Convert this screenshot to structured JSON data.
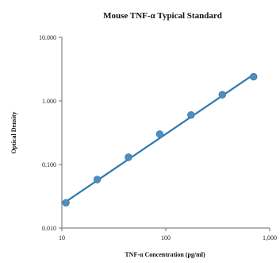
{
  "chart_data": {
    "type": "scatter",
    "title": "Mouse TNF-α Typical Standard",
    "xlabel": "TNF-α Concentration (pg/ml)",
    "ylabel": "Optical Density",
    "x_scale": "log",
    "y_scale": "log",
    "xlim": [
      10,
      1000
    ],
    "ylim": [
      0.01,
      10
    ],
    "x_ticks": [
      10,
      100,
      1000
    ],
    "x_tick_labels": [
      "10",
      "100",
      "1,000"
    ],
    "y_ticks": [
      0.01,
      0.1,
      1,
      10
    ],
    "y_tick_labels": [
      "0.010",
      "0.100",
      "1.000",
      "10.000"
    ],
    "grid": false,
    "series": [
      {
        "x": [
          10.94,
          21.88,
          43.75,
          87.5,
          175,
          350,
          700
        ],
        "y": [
          0.025,
          0.058,
          0.13,
          0.3,
          0.6,
          1.25,
          2.4
        ]
      }
    ],
    "fit_line": {
      "x": [
        10.94,
        700
      ],
      "y": [
        0.026,
        2.6
      ]
    },
    "colors": {
      "marker": "#4e8fc0",
      "marker_edge": "#3a78a8",
      "line": "#2e7ab3"
    }
  }
}
